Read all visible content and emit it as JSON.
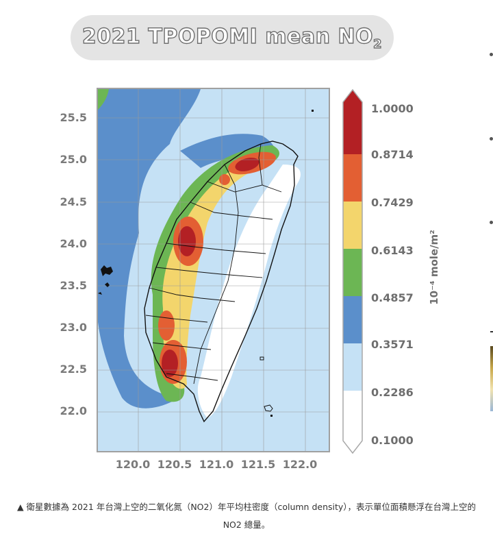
{
  "title": {
    "main": "2021 TPOPOMI mean NO",
    "subscript": "2"
  },
  "map": {
    "y_ticks": [
      "25.5",
      "25.0",
      "24.5",
      "24.0",
      "23.5",
      "23.0",
      "22.5",
      "22.0"
    ],
    "x_ticks": [
      "120.0",
      "120.5",
      "121.0",
      "121.5",
      "122.0"
    ],
    "lat_range": [
      21.7,
      25.85
    ],
    "lon_range": [
      119.6,
      122.35
    ]
  },
  "colorbar": {
    "ticks": [
      "1.0000",
      "0.8714",
      "0.7429",
      "0.6143",
      "0.4857",
      "0.3571",
      "0.2286",
      "0.1000"
    ],
    "colors": [
      "#ffffff",
      "#c5e1f5",
      "#5b8fcb",
      "#6cb654",
      "#f3d56c",
      "#e35f33",
      "#b32024"
    ],
    "unit": "10⁻⁴ mole/m²"
  },
  "caption": {
    "line1": "▲ 衛星數據為 2021 年台灣上空的二氧化氮（NO2）年平均柱密度（column density），表示單位面積懸浮在台灣上空的",
    "line2": "NO2 總量。"
  }
}
